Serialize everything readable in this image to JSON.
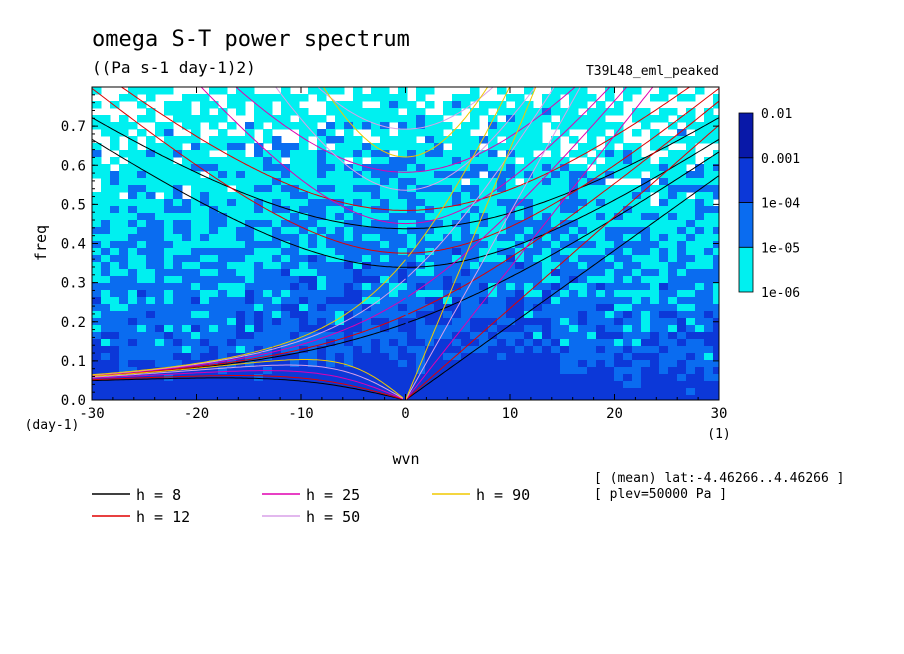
{
  "chart_data": {
    "type": "heatmap",
    "title": "omega S-T power spectrum",
    "subtitle": "((Pa s-1 day-1)2)",
    "experiment": "T39L48_eml_peaked",
    "xlabel": "wvn",
    "ylabel": "freq",
    "x_unit": "(1)",
    "y_unit": "(day-1)",
    "xlim": [
      -30,
      30
    ],
    "ylim": [
      0,
      0.8
    ],
    "x_ticks": [
      -30,
      -20,
      -10,
      0,
      10,
      20,
      30
    ],
    "x_tick_labels": [
      "-30",
      "-20",
      "-10",
      "0",
      "10",
      "20",
      "30"
    ],
    "y_ticks": [
      0,
      0.1,
      0.2,
      0.3,
      0.4,
      0.5,
      0.6,
      0.7
    ],
    "y_tick_labels": [
      "0.0",
      "0.1",
      "0.2",
      "0.3",
      "0.4",
      "0.5",
      "0.6",
      "0.7"
    ],
    "colorbar": {
      "levels": [
        1e-06,
        1e-05,
        0.0001,
        0.001,
        0.01
      ],
      "labels": [
        "1e-06",
        "1e-05",
        "1e-04",
        "0.001",
        "0.01"
      ],
      "colors": [
        "#00f0f0",
        "#0a6cf0",
        "#0c38d8",
        "#0818a8",
        "#4810a0"
      ]
    },
    "dispersion_curves": [
      {
        "label": "h =  8",
        "h": 8,
        "color": "#000000"
      },
      {
        "label": "h = 12",
        "h": 12,
        "color": "#e00000"
      },
      {
        "label": "h = 25",
        "h": 25,
        "color": "#e000b0"
      },
      {
        "label": "h = 50",
        "h": 50,
        "color": "#d8a0e8"
      },
      {
        "label": "h = 90",
        "h": 90,
        "color": "#f0c800"
      }
    ],
    "annotations": [
      "[ (mean) lat:-4.46266..4.46266 ]",
      "[ plev=50000 Pa ]"
    ]
  }
}
